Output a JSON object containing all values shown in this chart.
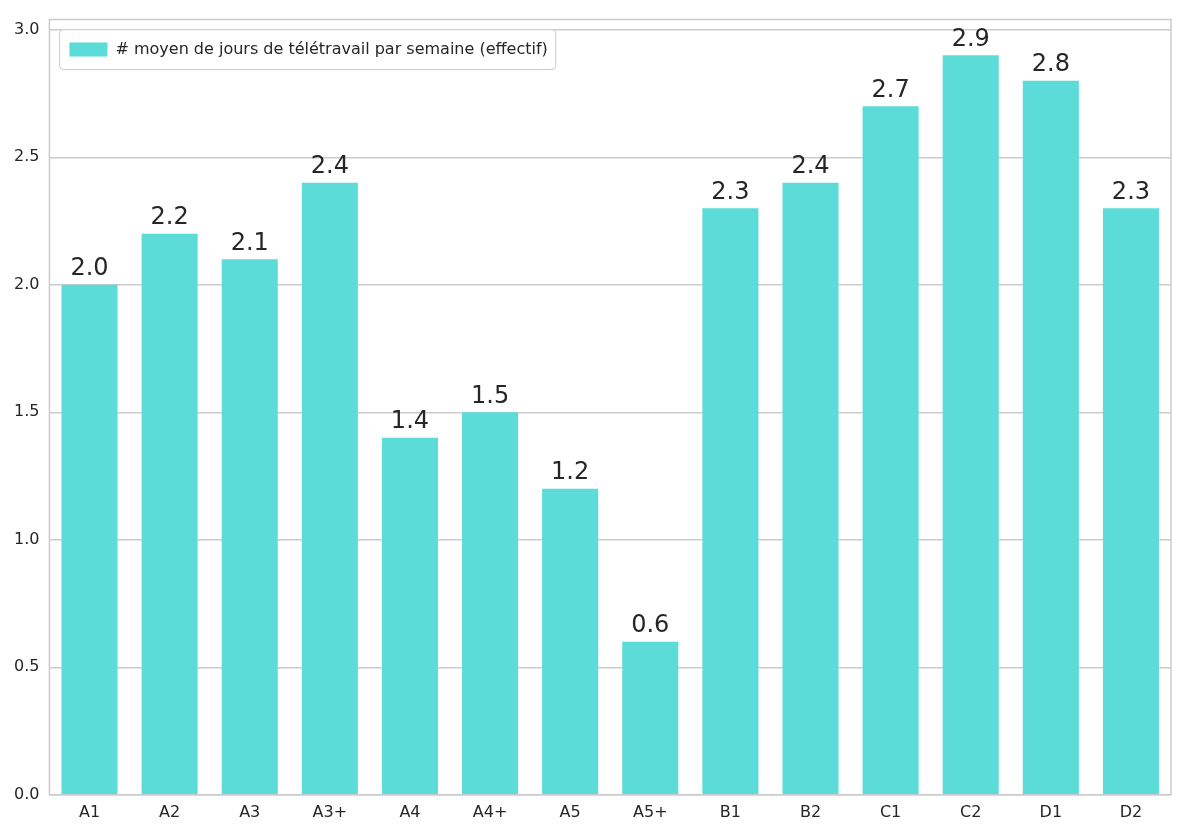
{
  "chart_data": {
    "type": "bar",
    "categories": [
      "A1",
      "A2",
      "A3",
      "A3+",
      "A4",
      "A4+",
      "A5",
      "A5+",
      "B1",
      "B2",
      "C1",
      "C2",
      "D1",
      "D2"
    ],
    "series": [
      {
        "name": "# moyen de jours de télétravail par semaine (effectif)",
        "color": "#5bdcd9",
        "values": [
          2.0,
          2.2,
          2.1,
          2.4,
          1.4,
          1.5,
          1.2,
          0.6,
          2.3,
          2.4,
          2.7,
          2.9,
          2.8,
          2.3
        ],
        "value_labels": [
          "2.0",
          "2.2",
          "2.1",
          "2.4",
          "1.4",
          "1.5",
          "1.2",
          "0.6",
          "2.3",
          "2.4",
          "2.7",
          "2.9",
          "2.8",
          "2.3"
        ]
      }
    ],
    "ylim": [
      0,
      3.04
    ],
    "yticks": [
      {
        "value": 0,
        "label": "0.0"
      },
      {
        "value": 0.5,
        "label": "0.5"
      },
      {
        "value": 1,
        "label": "1.0"
      },
      {
        "value": 1.5,
        "label": "1.5"
      },
      {
        "value": 2,
        "label": "2.0"
      },
      {
        "value": 2.5,
        "label": "2.5"
      },
      {
        "value": 3,
        "label": "3.0"
      }
    ],
    "grid": "y",
    "legend": "top left"
  }
}
